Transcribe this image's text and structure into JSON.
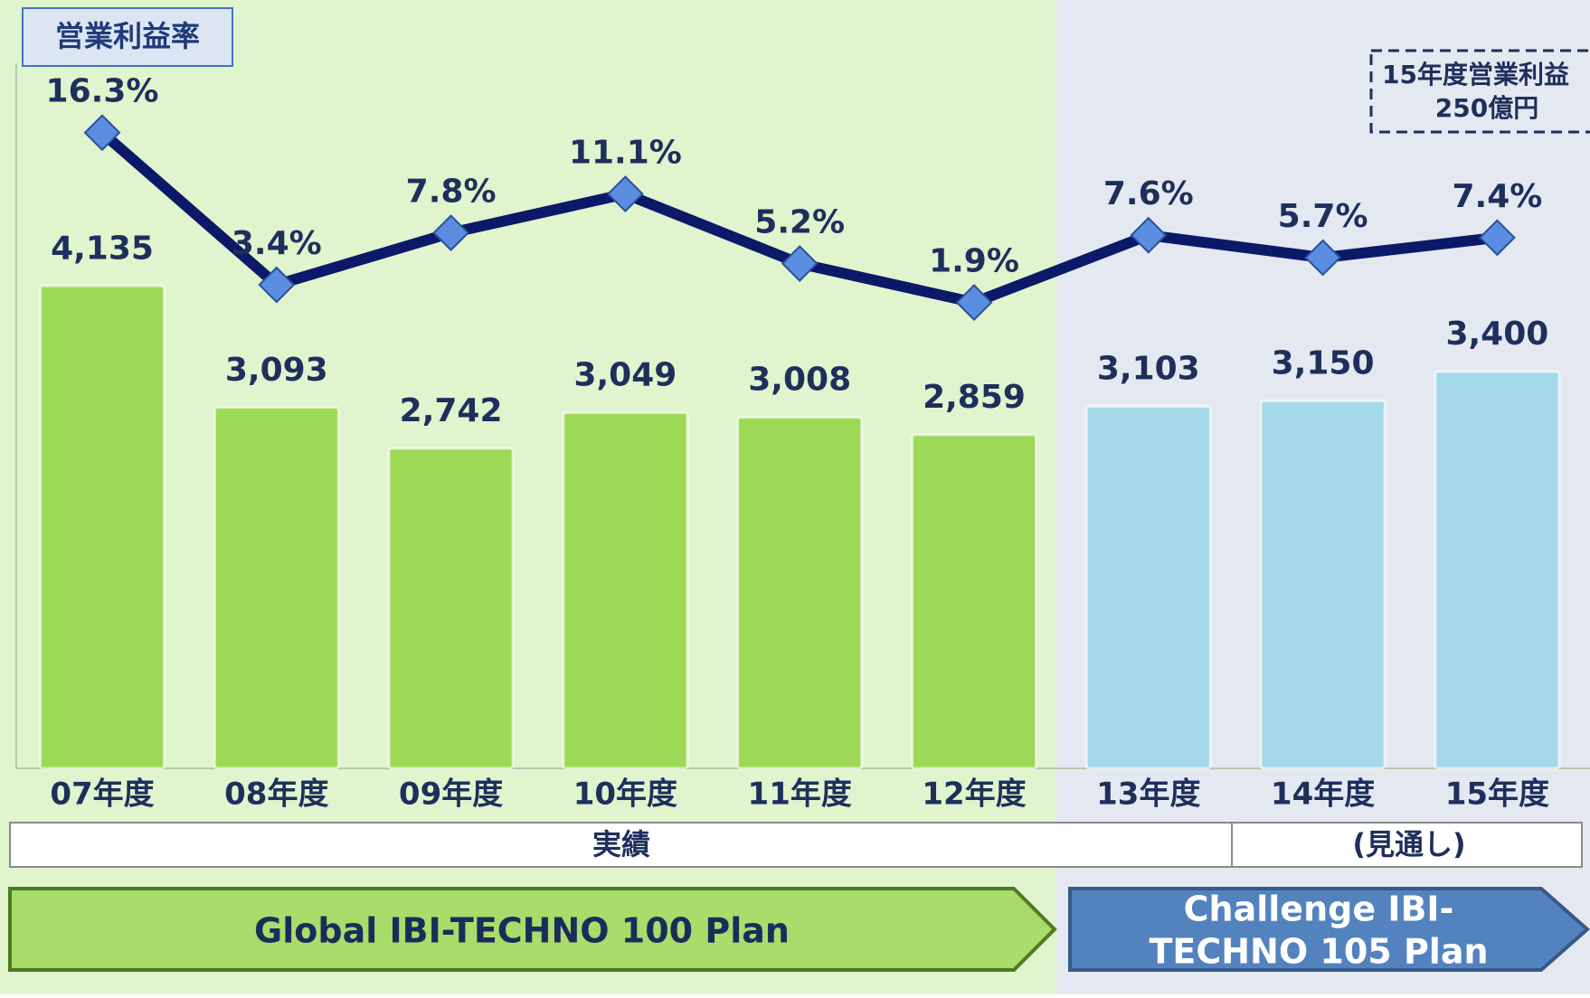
{
  "chart_data": {
    "type": "bar",
    "categories": [
      "07年度",
      "08年度",
      "09年度",
      "10年度",
      "11年度",
      "12年度",
      "13年度",
      "14年度",
      "15年度"
    ],
    "series": [
      {
        "type": "bar",
        "colors": [
          "#9dd957",
          "#9dd957",
          "#9dd957",
          "#9dd957",
          "#9dd957",
          "#9dd957",
          "#a4d9ea",
          "#a4d9ea",
          "#a4d9ea"
        ],
        "values": [
          4135,
          3093,
          2742,
          3049,
          3008,
          2859,
          3103,
          3150,
          3400
        ],
        "value_labels": [
          "4,135",
          "3,093",
          "2,742",
          "3,049",
          "3,008",
          "2,859",
          "3,103",
          "3,150",
          "3,400"
        ]
      },
      {
        "type": "line",
        "name": "営業利益率",
        "color": "#0c1868",
        "axis": "y2",
        "values": [
          16.3,
          3.4,
          7.8,
          11.1,
          5.2,
          1.9,
          7.6,
          5.7,
          7.4
        ],
        "value_labels": [
          "16.3%",
          "3.4%",
          "7.8%",
          "11.1%",
          "5.2%",
          "1.9%",
          "7.6%",
          "5.7%",
          "7.4%"
        ]
      }
    ],
    "ylim": [
      0,
      6500
    ],
    "y2lim": [
      -37.6,
      26.7
    ],
    "annotation": [
      "15年度営業利益",
      "250億円"
    ],
    "periods": [
      "実績",
      "(見通し)"
    ],
    "plans": [
      "Global IBI-TECHNO 100 Plan",
      [
        "Challenge IBI-",
        "TECHNO 105 Plan"
      ]
    ]
  }
}
